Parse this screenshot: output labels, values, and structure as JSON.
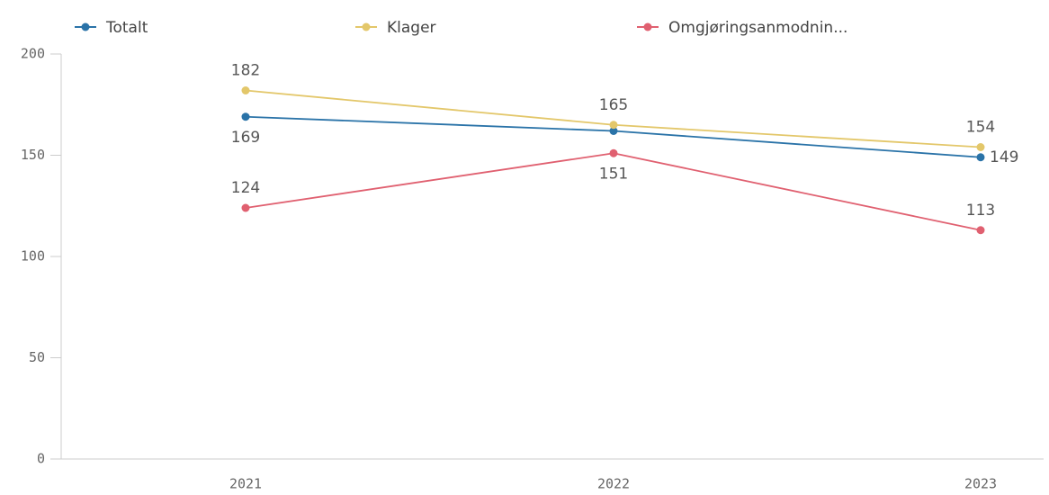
{
  "chart_data": {
    "type": "line",
    "categories": [
      "2021",
      "2022",
      "2023"
    ],
    "series": [
      {
        "name": "Totalt",
        "color": "#2a73a8",
        "values": [
          169,
          162,
          149
        ],
        "value_labels": [
          169,
          null,
          149
        ]
      },
      {
        "name": "Klager",
        "color": "#e3c76a",
        "values": [
          182,
          165,
          154
        ],
        "value_labels": [
          182,
          165,
          154
        ]
      },
      {
        "name": "Omgjøringsanmodnin...",
        "color": "#e06070",
        "values": [
          124,
          151,
          113
        ],
        "value_labels": [
          124,
          151,
          113
        ]
      }
    ],
    "ylim": [
      0,
      200
    ],
    "yticks": [
      0,
      50,
      100,
      150,
      200
    ],
    "grid": false
  }
}
